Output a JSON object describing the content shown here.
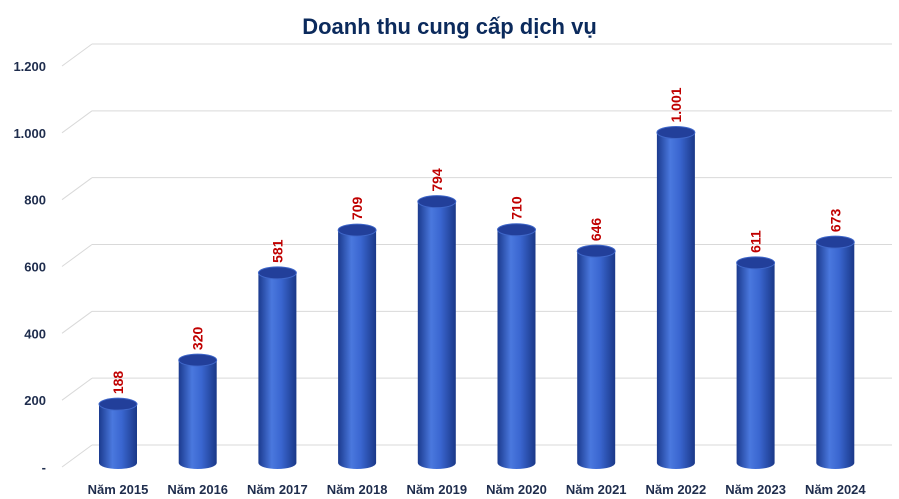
{
  "chart_data": {
    "type": "bar",
    "title": "Doanh thu cung cấp dịch vụ",
    "categories": [
      "Năm 2015",
      "Năm 2016",
      "Năm 2017",
      "Năm 2018",
      "Năm 2019",
      "Năm 2020",
      "Năm 2021",
      "Năm 2022",
      "Năm 2023",
      "Năm 2024"
    ],
    "values": [
      188,
      320,
      581,
      709,
      794,
      710,
      646,
      1001,
      611,
      673
    ],
    "value_labels": [
      "188",
      "320",
      "581",
      "709",
      "794",
      "710",
      "646",
      "1.001",
      "611",
      "673"
    ],
    "y_ticks": [
      0,
      200,
      400,
      600,
      800,
      1000,
      1200
    ],
    "y_tick_labels": [
      "-",
      "200",
      "400",
      "600",
      "800",
      "1.000",
      "1.200"
    ],
    "ylim": [
      0,
      1200
    ],
    "xlabel": "",
    "ylabel": "",
    "grid": true,
    "bar_style": "3d-cylinder",
    "colors": {
      "bar": "#2f5bc7",
      "bar_dark": "#1b3a8e",
      "bar_light": "#5b86e6",
      "bar_top": "#223f9a",
      "data_label": "#c00000",
      "title": "#0b2a5c",
      "grid": "#d9d9d9"
    }
  }
}
